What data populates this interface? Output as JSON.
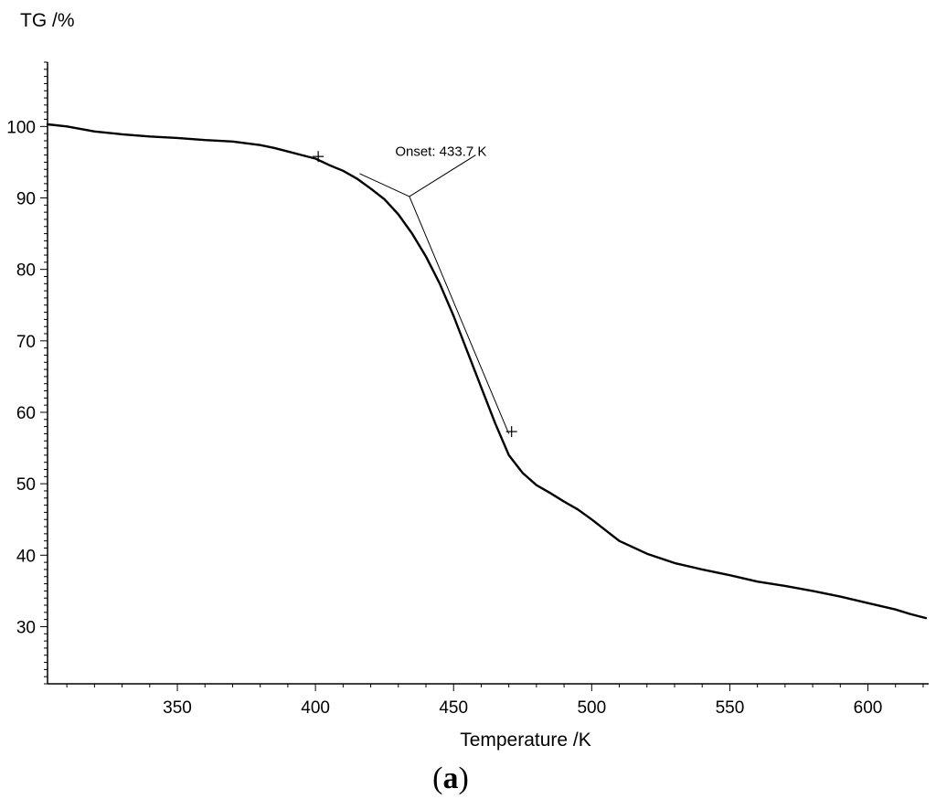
{
  "chart_data": {
    "type": "line",
    "ylabel": "TG /%",
    "xlabel": "Temperature /K",
    "panel_label": {
      "open": "(",
      "letter": "a",
      "close": ")"
    },
    "xlim": [
      303,
      622
    ],
    "ylim": [
      22,
      109
    ],
    "xticks": [
      350,
      400,
      450,
      500,
      550,
      600
    ],
    "yticks": [
      30,
      40,
      50,
      60,
      70,
      80,
      90,
      100
    ],
    "grid": false,
    "series": [
      {
        "x": [
          303,
          310,
          320,
          330,
          340,
          350,
          360,
          370,
          380,
          385,
          390,
          395,
          400,
          405,
          410,
          415,
          420,
          425,
          430,
          435,
          440,
          445,
          450,
          455,
          460,
          465,
          470,
          475,
          480,
          485,
          490,
          495,
          500,
          510,
          520,
          530,
          540,
          550,
          560,
          570,
          580,
          590,
          600,
          610,
          615,
          621
        ],
        "y": [
          100.3,
          100.0,
          99.3,
          98.9,
          98.6,
          98.4,
          98.1,
          97.9,
          97.4,
          97.0,
          96.5,
          96.0,
          95.5,
          94.6,
          93.8,
          92.7,
          91.3,
          89.8,
          87.7,
          85.0,
          81.8,
          78.0,
          73.5,
          68.5,
          63.5,
          58.5,
          54.0,
          51.5,
          49.8,
          48.7,
          47.5,
          46.4,
          45.0,
          42.0,
          40.2,
          38.9,
          38.0,
          37.2,
          36.3,
          35.7,
          35.0,
          34.2,
          33.3,
          32.4,
          31.8,
          31.2
        ]
      }
    ],
    "markers": [
      {
        "x": 401,
        "y": 95.8
      },
      {
        "x": 471,
        "y": 57.3
      }
    ],
    "annotations": [
      {
        "text": "Onset: 433.7 K",
        "tangent_pre": {
          "from": {
            "x": 416,
            "y": 93.4
          },
          "to": {
            "x": 434,
            "y": 90.2
          }
        },
        "tangent_step": {
          "from": {
            "x": 434,
            "y": 90.2
          },
          "to": {
            "x": 470,
            "y": 57.0
          }
        },
        "leader": {
          "from": {
            "x": 434,
            "y": 90.2
          },
          "to": {
            "x": 458,
            "y": 96.0
          }
        }
      }
    ]
  }
}
